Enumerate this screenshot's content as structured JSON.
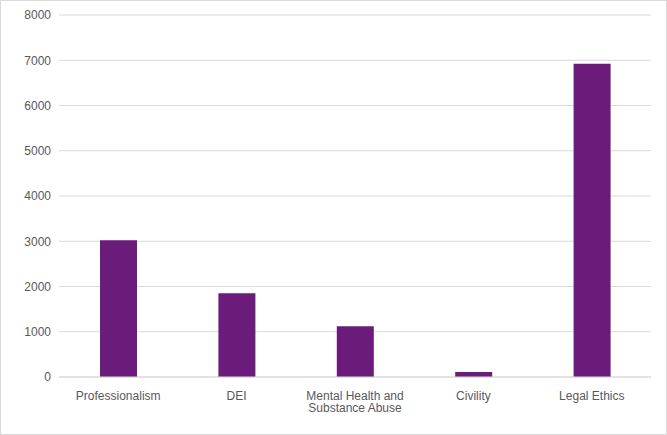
{
  "chart_data": {
    "type": "bar",
    "categories": [
      "Professionalism",
      "DEI",
      "Mental Health and Substance Abuse",
      "Civility",
      "Legal Ethics"
    ],
    "values": [
      3020,
      1850,
      1120,
      110,
      6920
    ],
    "color": "#6b1c7a",
    "ylim": [
      0,
      8000
    ],
    "yticks": [
      0,
      1000,
      2000,
      3000,
      4000,
      5000,
      6000,
      7000,
      8000
    ],
    "grid": true
  }
}
